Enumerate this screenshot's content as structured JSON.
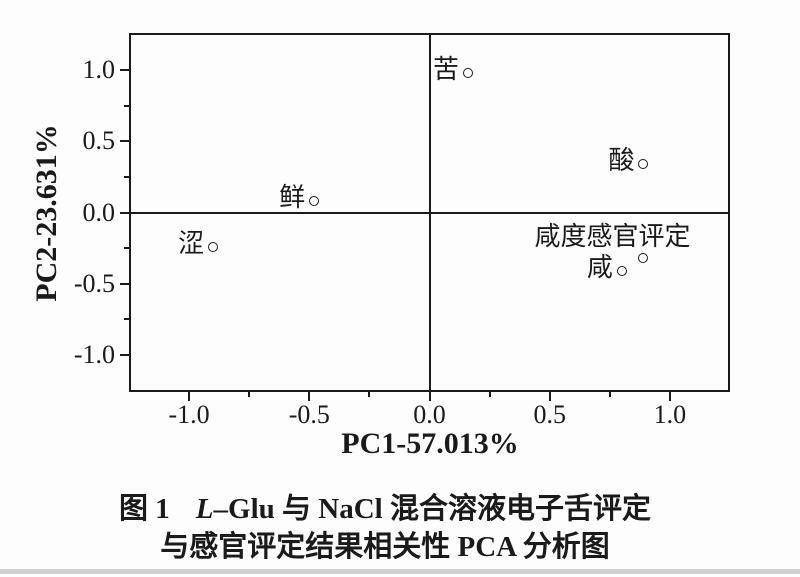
{
  "figure": {
    "background": "#fdfdfd",
    "ink": "#1a1a1a"
  },
  "chart_data": {
    "type": "scatter",
    "xlabel": "PC1-57.013%",
    "ylabel": "PC2-23.631%",
    "xlim": [
      -1.25,
      1.25
    ],
    "ylim": [
      -1.26,
      1.26
    ],
    "grid": false,
    "legend": "none",
    "marker": "open-circle",
    "x_ticks": {
      "major": [
        -1.0,
        -0.5,
        0.0,
        0.5,
        1.0
      ],
      "labels": [
        "-1.0",
        "-0.5",
        "0.0",
        "0.5",
        "1.0"
      ],
      "minor": [
        -0.75,
        -0.25,
        0.25,
        0.75
      ]
    },
    "y_ticks": {
      "major": [
        1.0,
        0.5,
        0.0,
        -0.5,
        -1.0
      ],
      "labels": [
        "1.0",
        "0.5",
        "0.0",
        "-0.5",
        "-1.0"
      ],
      "minor": [
        0.75,
        0.25,
        -0.25,
        -0.75
      ]
    },
    "points": [
      {
        "label": "苦",
        "x": 0.16,
        "y": 0.98,
        "label_position": "left"
      },
      {
        "label": "酸",
        "x": 0.89,
        "y": 0.34,
        "label_position": "left"
      },
      {
        "label": "鲜",
        "x": -0.48,
        "y": 0.08,
        "label_position": "left"
      },
      {
        "label": "涩",
        "x": -0.9,
        "y": -0.24,
        "label_position": "left"
      },
      {
        "label": "咸度感官评定",
        "x": 0.89,
        "y": -0.32,
        "label_position": "above-left"
      },
      {
        "label": "咸",
        "x": 0.8,
        "y": -0.41,
        "label_position": "left"
      }
    ]
  },
  "caption": {
    "fig_label": "图 1",
    "italic_prefix": "L",
    "line1_rest": "–Glu 与 NaCl 混合溶液电子舌评定",
    "line2": "与感官评定结果相关性 PCA 分析图"
  }
}
